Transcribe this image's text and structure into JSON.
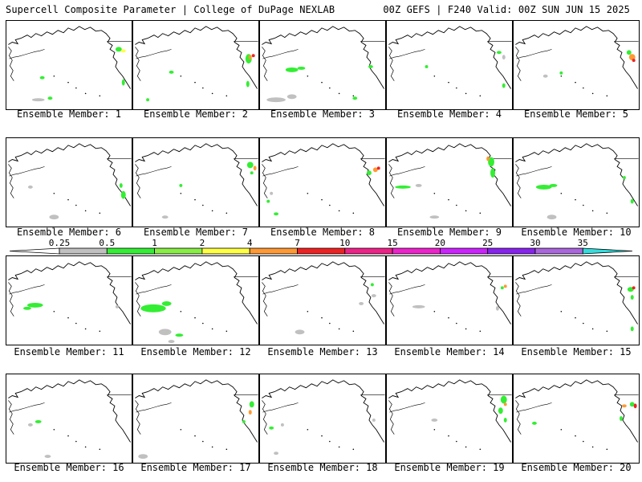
{
  "header": {
    "left": "Supercell Composite Parameter | College of DuPage NEXLAB",
    "right": "00Z GEFS | F240 Valid: 00Z SUN JUN 15 2025"
  },
  "colorbar": {
    "labels": [
      "0.25",
      "0.5",
      "1",
      "2",
      "4",
      "7",
      "10",
      "15",
      "20",
      "25",
      "30",
      "35"
    ],
    "colors": [
      "#c0c0c0",
      "#33ee33",
      "#88ee44",
      "#ffff44",
      "#ff9933",
      "#ee2222",
      "#ee2288",
      "#ee22cc",
      "#cc22ff",
      "#8822ee",
      "#aa66dd",
      "#33dddd"
    ]
  },
  "members": [
    {
      "label": "Ensemble Member: 1"
    },
    {
      "label": "Ensemble Member: 2"
    },
    {
      "label": "Ensemble Member: 3"
    },
    {
      "label": "Ensemble Member: 4"
    },
    {
      "label": "Ensemble Member: 5"
    },
    {
      "label": "Ensemble Member: 6"
    },
    {
      "label": "Ensemble Member: 7"
    },
    {
      "label": "Ensemble Member: 8"
    },
    {
      "label": "Ensemble Member: 9"
    },
    {
      "label": "Ensemble Member: 10"
    },
    {
      "label": "Ensemble Member: 11"
    },
    {
      "label": "Ensemble Member: 12"
    },
    {
      "label": "Ensemble Member: 13"
    },
    {
      "label": "Ensemble Member: 14"
    },
    {
      "label": "Ensemble Member: 15"
    },
    {
      "label": "Ensemble Member: 16"
    },
    {
      "label": "Ensemble Member: 17"
    },
    {
      "label": "Ensemble Member: 18"
    },
    {
      "label": "Ensemble Member: 19"
    },
    {
      "label": "Ensemble Member: 20"
    }
  ]
}
